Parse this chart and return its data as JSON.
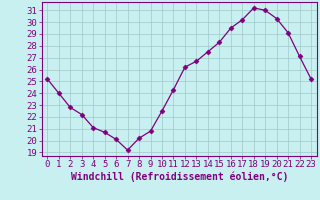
{
  "x": [
    0,
    1,
    2,
    3,
    4,
    5,
    6,
    7,
    8,
    9,
    10,
    11,
    12,
    13,
    14,
    15,
    16,
    17,
    18,
    19,
    20,
    21,
    22,
    23
  ],
  "y": [
    25.2,
    24.0,
    22.8,
    22.2,
    21.1,
    20.7,
    20.1,
    19.2,
    20.2,
    20.8,
    22.5,
    24.3,
    26.2,
    26.7,
    27.5,
    28.3,
    29.5,
    30.2,
    31.2,
    31.0,
    30.3,
    29.1,
    27.1,
    25.2
  ],
  "line_color": "#800080",
  "marker": "D",
  "marker_size": 2.5,
  "bg_color": "#c8f0f0",
  "grid_color": "#a0c8c8",
  "xlabel": "Windchill (Refroidissement éolien,°C)",
  "ylim_min": 18.7,
  "ylim_max": 31.7,
  "yticks": [
    19,
    20,
    21,
    22,
    23,
    24,
    25,
    26,
    27,
    28,
    29,
    30,
    31
  ],
  "xticks": [
    0,
    1,
    2,
    3,
    4,
    5,
    6,
    7,
    8,
    9,
    10,
    11,
    12,
    13,
    14,
    15,
    16,
    17,
    18,
    19,
    20,
    21,
    22,
    23
  ],
  "font_color": "#800080",
  "xlabel_fontsize": 7,
  "tick_fontsize": 6.5
}
